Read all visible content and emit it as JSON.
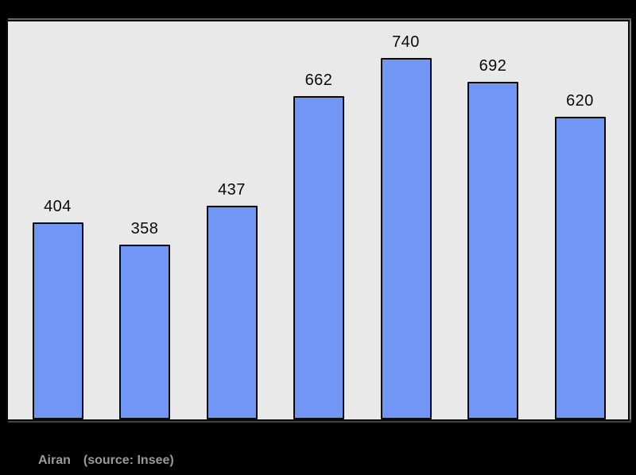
{
  "page": {
    "background": "#000000"
  },
  "chart_data": {
    "type": "bar",
    "categories": [
      "",
      "",
      "",
      "",
      "",
      "",
      ""
    ],
    "values": [
      404,
      358,
      437,
      662,
      740,
      692,
      620
    ],
    "data_labels": [
      "404",
      "358",
      "437",
      "662",
      "740",
      "692",
      "620"
    ],
    "title": "",
    "xlabel": "",
    "ylabel": "",
    "ylim": [
      0,
      815
    ],
    "grid": false,
    "legend": false,
    "bar_color": "#7196F5",
    "bar_border_color": "#0A0A0A",
    "plot_background": "#E9E9E9",
    "data_label_color": "#0A0A0A"
  },
  "caption": {
    "commune": "Airan",
    "source": "(source: Insee)",
    "color": "#999999"
  }
}
